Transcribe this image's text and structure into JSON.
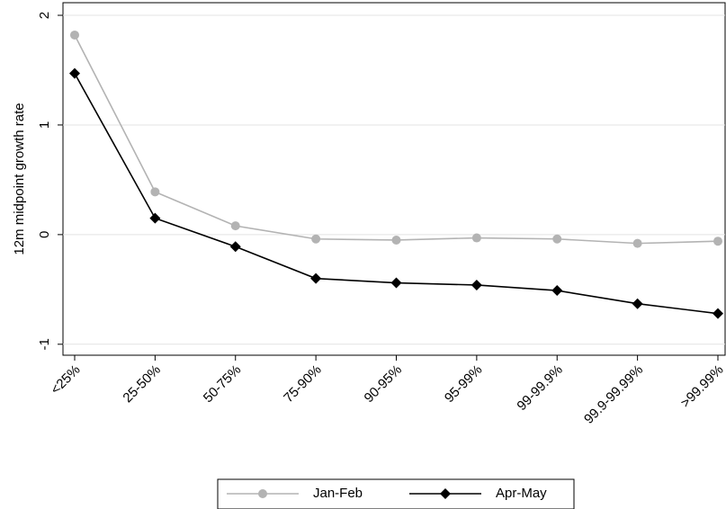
{
  "chart_data": {
    "type": "line",
    "y_label": "12m midpoint growth rate",
    "categories": [
      "<25%",
      "25-50%",
      "50-75%",
      "75-90%",
      "90-95%",
      "95-99%",
      "99-99.9%",
      "99.9-99.99%",
      ">99.99%"
    ],
    "series": [
      {
        "name": "Jan-Feb",
        "color": "#b3b3b3",
        "marker": "circle",
        "values": [
          1.82,
          0.39,
          0.08,
          -0.04,
          -0.05,
          -0.03,
          -0.04,
          -0.08,
          -0.06
        ]
      },
      {
        "name": "Apr-May",
        "color": "#000000",
        "marker": "diamond",
        "values": [
          1.47,
          0.15,
          -0.11,
          -0.4,
          -0.44,
          -0.46,
          -0.51,
          -0.63,
          -0.72
        ]
      }
    ],
    "ylim": [
      -1.1,
      2.115
    ],
    "yticks": [
      -1,
      0,
      1,
      2
    ],
    "grid": true
  }
}
